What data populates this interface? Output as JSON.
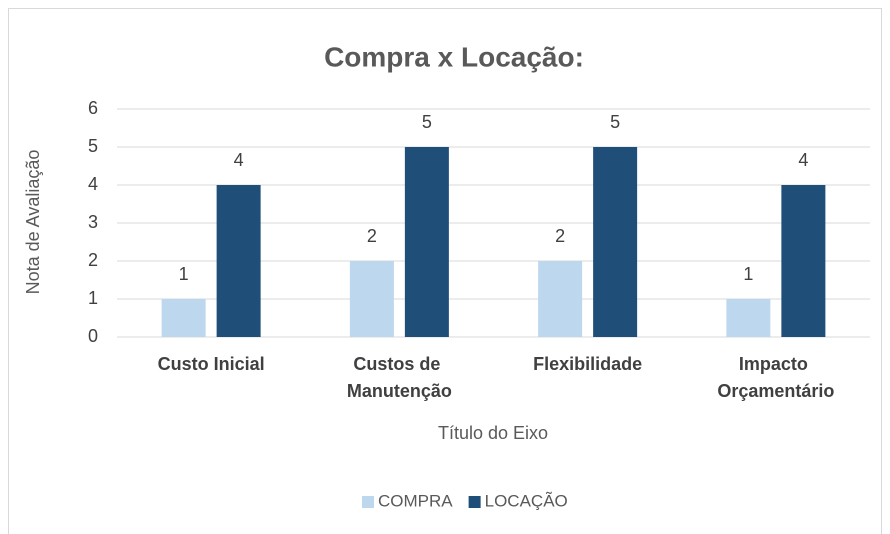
{
  "chart_data": {
    "type": "bar",
    "title": "Compra x Locação:",
    "x_label": "Título do Eixo",
    "y_label": "Nota de Avaliação",
    "categories": [
      "Custo Inicial",
      "Custos de Manutenção",
      "Flexibilidade",
      "Impacto Orçamentário"
    ],
    "series": [
      {
        "name": "COMPRA",
        "color": "#bdd7ee",
        "values": [
          1,
          2,
          2,
          1
        ]
      },
      {
        "name": "LOCAÇÃO",
        "color": "#1f4e79",
        "values": [
          4,
          5,
          5,
          4
        ]
      }
    ],
    "ylim": [
      0,
      6
    ],
    "yticks": [
      0,
      1,
      2,
      3,
      4,
      5,
      6
    ],
    "grid": true,
    "legend": "bottom"
  }
}
